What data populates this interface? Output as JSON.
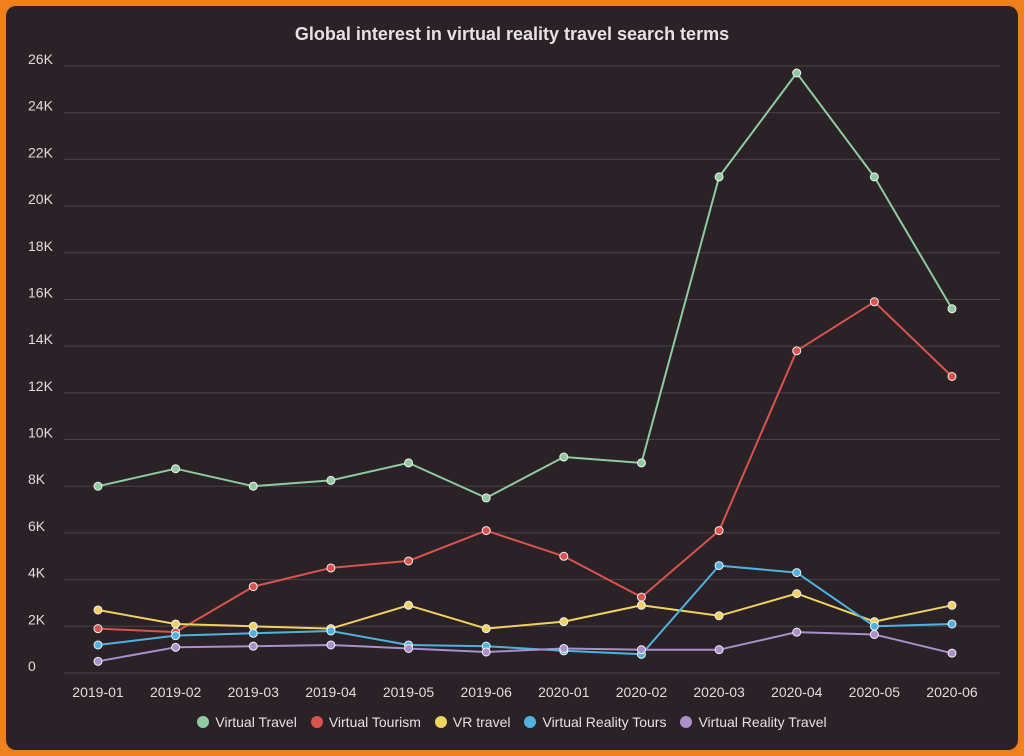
{
  "chart_data": {
    "type": "line",
    "title": "Global interest in virtual reality travel search terms",
    "xlabel": "",
    "ylabel": "",
    "x": [
      "2019-01",
      "2019-02",
      "2019-03",
      "2019-04",
      "2019-05",
      "2019-06",
      "2020-01",
      "2020-02",
      "2020-03",
      "2020-04",
      "2020-05",
      "2020-06"
    ],
    "ylim": [
      0,
      26000
    ],
    "yticks": [
      0,
      2000,
      4000,
      6000,
      8000,
      10000,
      12000,
      14000,
      16000,
      18000,
      20000,
      22000,
      24000,
      26000
    ],
    "ytick_labels": [
      "0",
      "2K",
      "4K",
      "6K",
      "8K",
      "10K",
      "12K",
      "14K",
      "16K",
      "18K",
      "20K",
      "22K",
      "24K",
      "26K"
    ],
    "grid": true,
    "legend_position": "bottom",
    "series": [
      {
        "name": "Virtual Travel",
        "color": "#8fcaa0",
        "values": [
          8000,
          8750,
          8000,
          8250,
          9000,
          7500,
          9250,
          9000,
          21250,
          25700,
          21250,
          15600
        ]
      },
      {
        "name": "Virtual Tourism",
        "color": "#d9534f",
        "values": [
          1900,
          1750,
          3700,
          4500,
          4800,
          6100,
          5000,
          3250,
          6100,
          13800,
          15900,
          12700
        ]
      },
      {
        "name": "VR travel",
        "color": "#f0d261",
        "values": [
          2700,
          2100,
          2000,
          1900,
          2900,
          1900,
          2200,
          2900,
          2450,
          3400,
          2200,
          2900
        ]
      },
      {
        "name": "Virtual Reality Tours",
        "color": "#4fb2e0",
        "values": [
          1200,
          1600,
          1700,
          1800,
          1200,
          1150,
          950,
          800,
          4600,
          4300,
          2000,
          2100
        ]
      },
      {
        "name": "Virtual Reality Travel",
        "color": "#a98fcb",
        "values": [
          500,
          1100,
          1150,
          1200,
          1050,
          900,
          1050,
          1000,
          1000,
          1750,
          1650,
          850
        ]
      }
    ]
  }
}
